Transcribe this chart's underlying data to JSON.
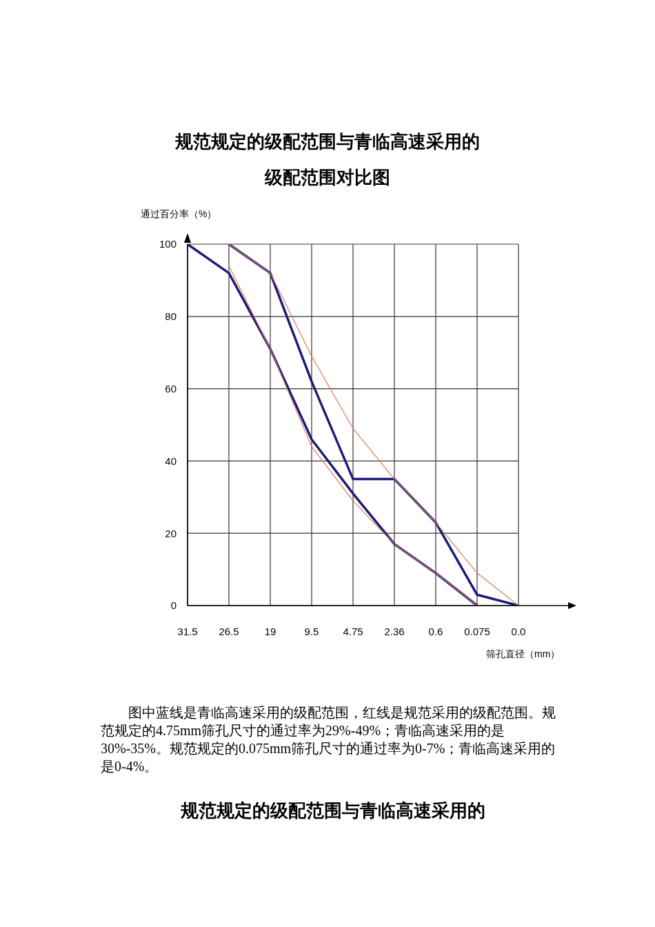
{
  "chart_data": {
    "type": "line",
    "title": "规范规定的级配范围与青临高速采用的级配范围对比图",
    "ylabel": "通过百分率（%）",
    "xlabel": "筛孔直径（mm）",
    "categories": [
      "31.5",
      "26.5",
      "19",
      "9.5",
      "4.75",
      "2.36",
      "0.6",
      "0.075",
      "0.0"
    ],
    "series": [
      {
        "color": "#1c1c78",
        "values": [
          null,
          100,
          92,
          62,
          35,
          35,
          23,
          3,
          0
        ]
      },
      {
        "color": "#1c1c78",
        "values": [
          100,
          92,
          71,
          46,
          31,
          17,
          9,
          0,
          null
        ]
      },
      {
        "color": "#e0785a",
        "values": [
          null,
          100,
          92,
          69,
          49,
          35,
          23,
          9,
          0
        ]
      },
      {
        "color": "#e0785a",
        "values": [
          null,
          94,
          71,
          44,
          29,
          17,
          9,
          0,
          null
        ]
      }
    ],
    "ylim": [
      0,
      100
    ],
    "yticks": [
      0,
      20,
      40,
      60,
      80,
      100
    ],
    "grid": true,
    "marker": "none",
    "line_style": "solid",
    "annotations": [
      "图中蓝线是青临高速采用的级配范围，红线是规范采用的级配范围。规范规定的4.75mm筛孔尺寸的通过率为29%-49%；青临高速采用的是30%-35%。规范规定的0.075mm筛孔尺寸的通过率为0-7%；青临高速采用的是0-4%。",
      "规范规定的级配范围与青临高速采用的"
    ]
  }
}
